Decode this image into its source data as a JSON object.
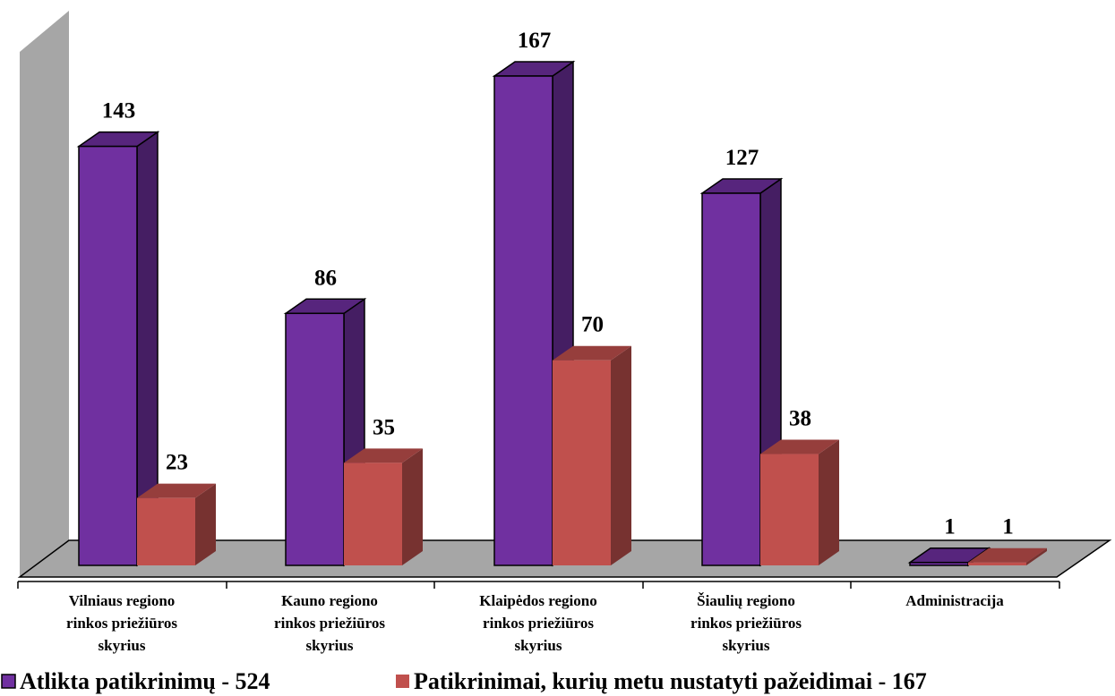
{
  "chart_data": {
    "type": "bar",
    "categories": [
      [
        "Vilniaus regiono",
        "rinkos priežiūros",
        "skyrius"
      ],
      [
        "Kauno regiono",
        "rinkos priežiūros",
        "skyrius"
      ],
      [
        "Klaipėdos regiono",
        "rinkos priežiūros",
        "skyrius"
      ],
      [
        "Šiaulių regiono",
        "rinkos priežiūros",
        "skyrius"
      ],
      [
        "Administracija"
      ]
    ],
    "series": [
      {
        "name": "Atlikta patikrinimų  - 524",
        "color": "#7030a0",
        "values": [
          143,
          86,
          167,
          127,
          1
        ]
      },
      {
        "name": "Patikrinimai, kurių metu nustatyti pažeidimai -  167",
        "color": "#c0504d",
        "values": [
          23,
          35,
          70,
          38,
          1
        ]
      }
    ],
    "ylim": [
      0,
      167
    ],
    "grid": false,
    "legend_position": "bottom",
    "style": "3d-column",
    "colors": {
      "floor": "#a6a6a6",
      "back_wall": "#a6a6a6"
    }
  }
}
